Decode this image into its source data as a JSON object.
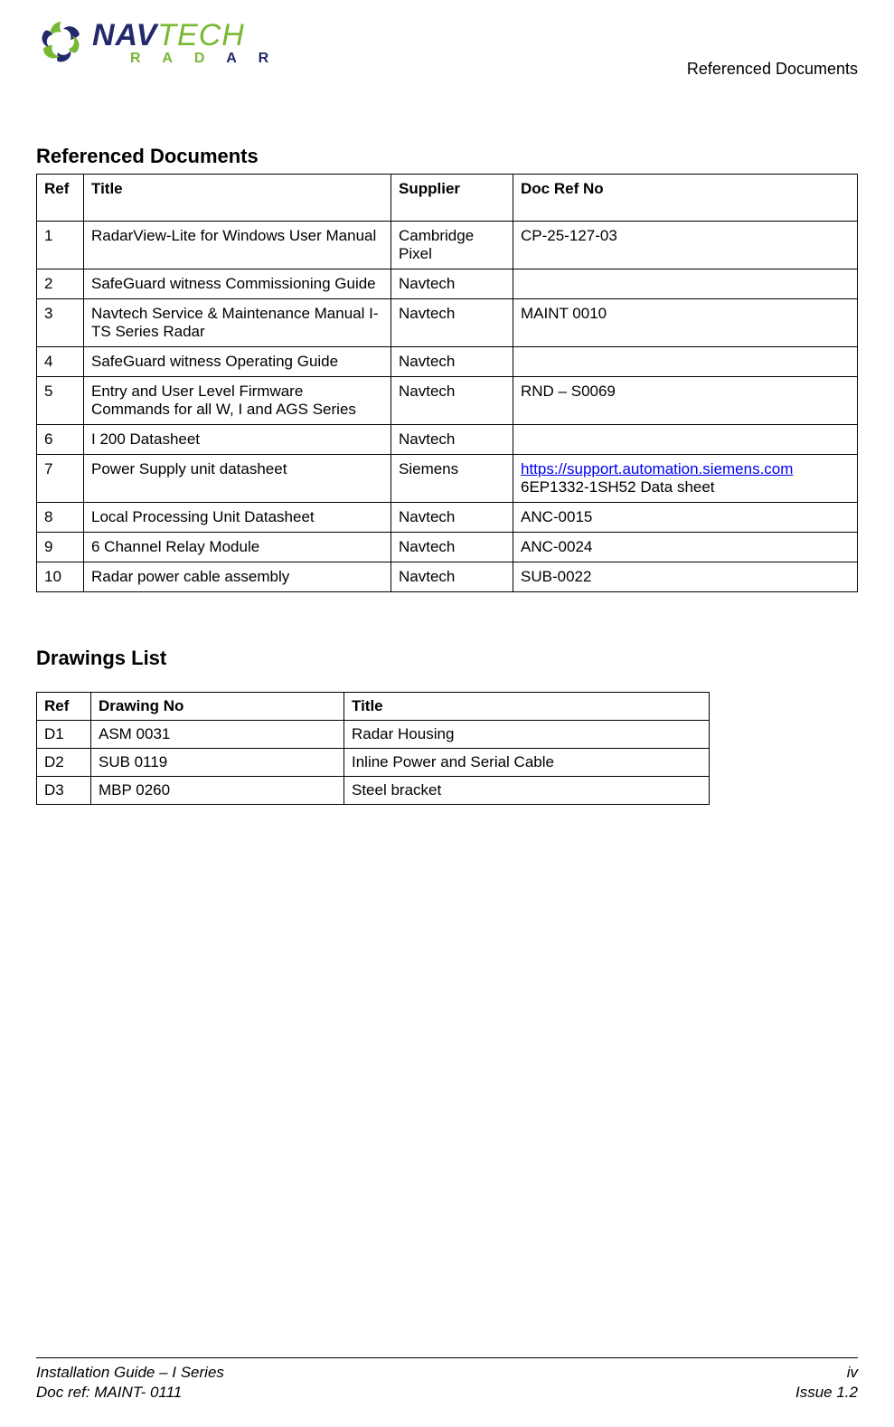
{
  "header": {
    "logo_main_1": "NAV",
    "logo_main_2": "TECH",
    "logo_sub_1": "R A D",
    "logo_sub_2": "A R",
    "right_label": "Referenced Documents"
  },
  "sections": {
    "ref_docs_title": "Referenced Documents",
    "drawings_title": "Drawings List"
  },
  "ref_table": {
    "columns": [
      "Ref",
      "Title",
      "Supplier",
      "Doc Ref No"
    ],
    "rows": [
      {
        "ref": "1",
        "title": "RadarView-Lite for Windows User Manual",
        "supplier": "Cambridge Pixel",
        "doc": "CP-25-127-03",
        "link": "",
        "doc2": ""
      },
      {
        "ref": "2",
        "title": "SafeGuard witness Commissioning Guide",
        "supplier": "Navtech",
        "doc": "",
        "link": "",
        "doc2": ""
      },
      {
        "ref": "3",
        "title": "Navtech Service & Maintenance Manual I-TS Series Radar",
        "supplier": "Navtech",
        "doc": "MAINT 0010",
        "link": "",
        "doc2": ""
      },
      {
        "ref": "4",
        "title": "SafeGuard witness Operating Guide",
        "supplier": "Navtech",
        "doc": "",
        "link": "",
        "doc2": ""
      },
      {
        "ref": "5",
        "title": "Entry and User Level Firmware Commands for all W, I and  AGS Series",
        "supplier": "Navtech",
        "doc": "RND – S0069",
        "link": "",
        "doc2": ""
      },
      {
        "ref": "6",
        "title": "I 200 Datasheet",
        "supplier": "Navtech",
        "doc": "",
        "link": "",
        "doc2": ""
      },
      {
        "ref": "7",
        "title": "Power Supply unit datasheet",
        "supplier": "Siemens",
        "doc": "",
        "link": "https://support.automation.siemens.com",
        "doc2": "6EP1332-1SH52 Data sheet"
      },
      {
        "ref": "8",
        "title": "Local Processing Unit  Datasheet",
        "supplier": "Navtech",
        "doc": "ANC-0015",
        "link": "",
        "doc2": ""
      },
      {
        "ref": "9",
        "title": "6 Channel Relay Module",
        "supplier": "Navtech",
        "doc": "ANC-0024",
        "link": "",
        "doc2": ""
      },
      {
        "ref": "10",
        "title": "Radar power cable assembly",
        "supplier": "Navtech",
        "doc": "SUB-0022",
        "link": "",
        "doc2": ""
      }
    ]
  },
  "draw_table": {
    "columns": [
      "Ref",
      "Drawing No",
      "Title"
    ],
    "rows": [
      {
        "ref": "D1",
        "no": "ASM 0031",
        "title": "Radar Housing"
      },
      {
        "ref": "D2",
        "no": "SUB 0119",
        "title": "Inline Power and Serial Cable"
      },
      {
        "ref": "D3",
        "no": "MBP 0260",
        "title": "Steel bracket"
      }
    ]
  },
  "footer": {
    "left1": "Installation Guide – I Series",
    "right1": "iv",
    "left2": "Doc ref: MAINT- 0111",
    "right2": "Issue 1.2"
  },
  "styles": {
    "text_color": "#000000",
    "link_color": "#0000ee",
    "logo_blue": "#232a6c",
    "logo_green": "#78b833",
    "page_bg": "#ffffff",
    "border_color": "#000000",
    "body_font_size_pt": 13,
    "heading_font_size_pt": 17
  }
}
